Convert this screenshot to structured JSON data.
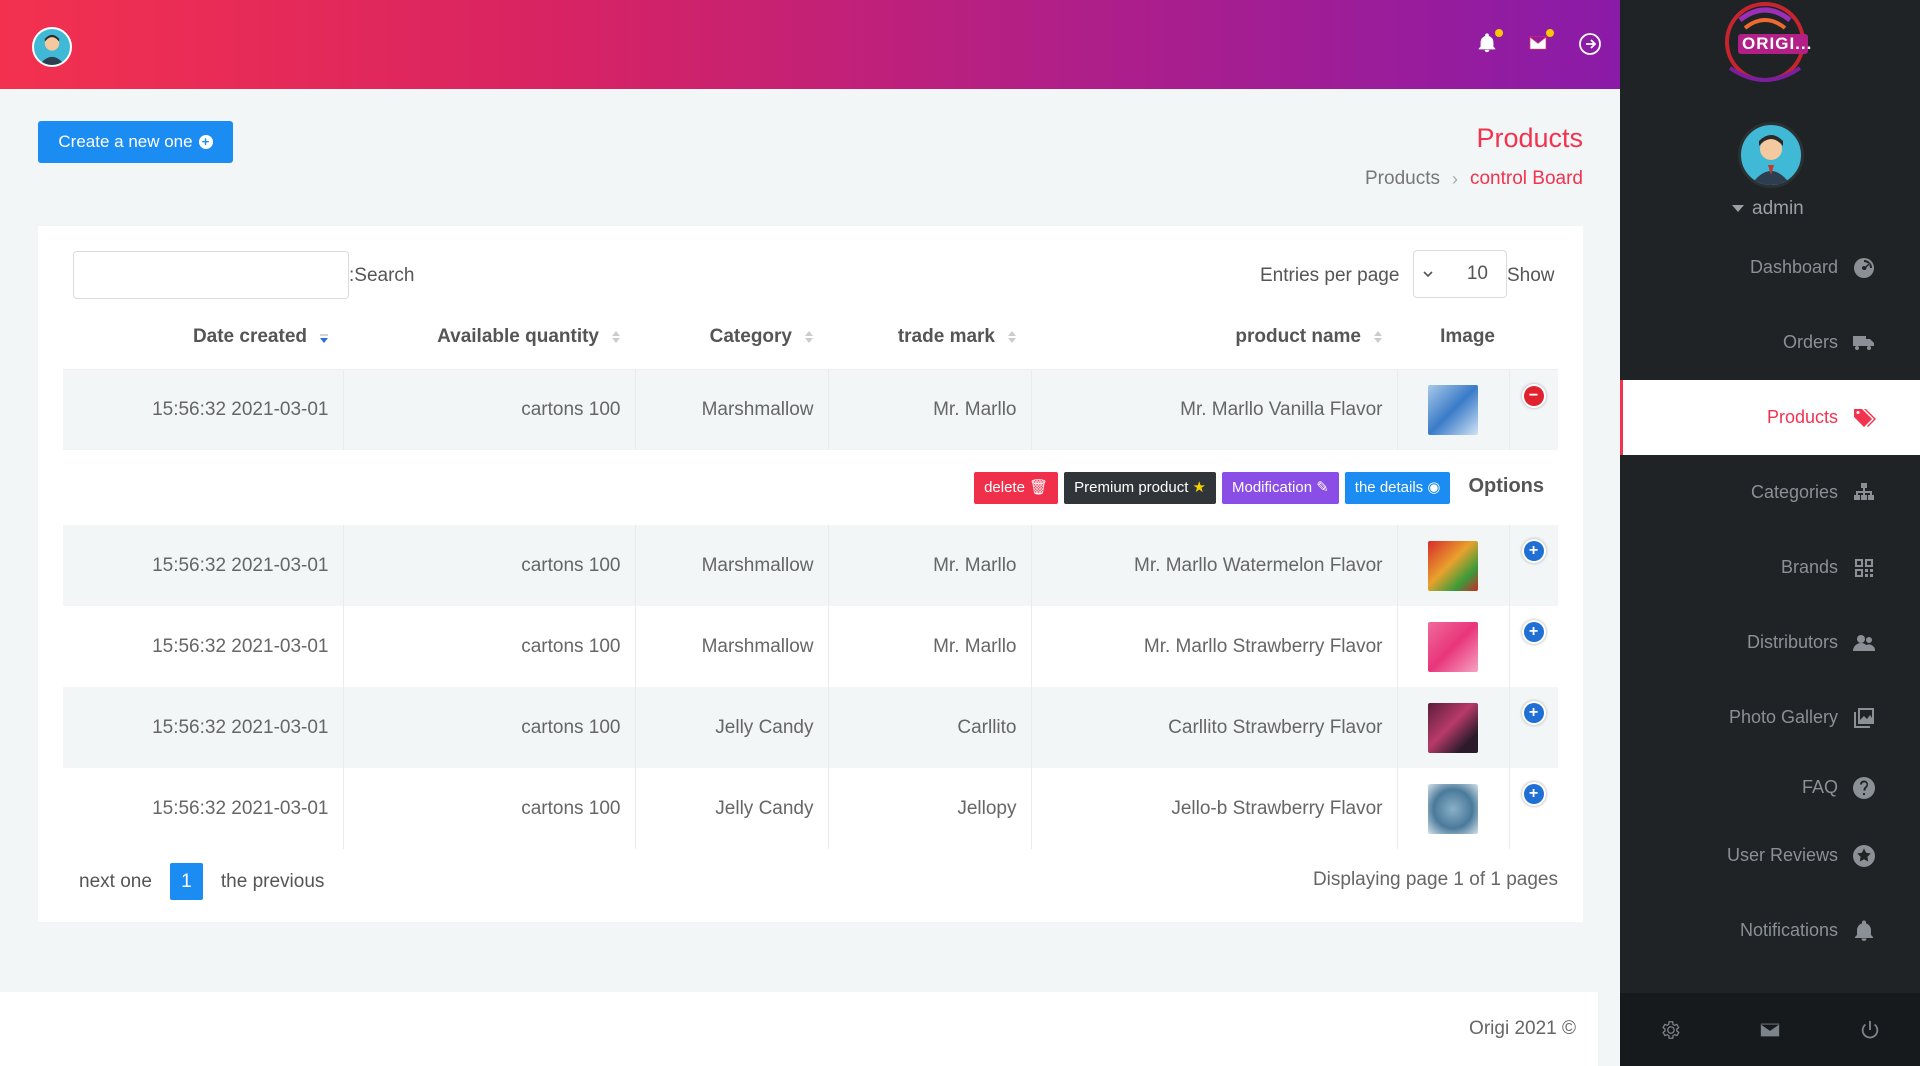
{
  "header": {
    "notification_icon": "bell-icon",
    "mail_icon": "mail-icon",
    "logout_icon": "logout-icon"
  },
  "sidebar": {
    "logo_text": "ORIGI...",
    "user": "admin",
    "items": [
      {
        "label": "Dashboard",
        "icon": "dashboard-icon"
      },
      {
        "label": "Orders",
        "icon": "truck-icon"
      },
      {
        "label": "Products",
        "icon": "tags-icon",
        "active": true
      },
      {
        "label": "Categories",
        "icon": "sitemap-icon"
      },
      {
        "label": "Brands",
        "icon": "qrcode-icon"
      },
      {
        "label": "Distributors",
        "icon": "users-icon"
      },
      {
        "label": "Photo Gallery",
        "icon": "images-icon"
      },
      {
        "label": "FAQ",
        "icon": "question-icon"
      },
      {
        "label": "User Reviews",
        "icon": "star-icon"
      },
      {
        "label": "Notifications",
        "icon": "bell-icon"
      }
    ],
    "bottom_icons": [
      "gear-icon",
      "mail-icon",
      "power-icon"
    ]
  },
  "page": {
    "create_label": "Create a new one",
    "title": "Products",
    "breadcrumb": [
      "Products",
      "control Board"
    ]
  },
  "table_controls": {
    "search_label": ":Search",
    "search_value": "",
    "entries_label": "Entries per page",
    "entries_value": "10",
    "show_label": "Show"
  },
  "table": {
    "columns": [
      "Date created",
      "Available quantity",
      "Category",
      "trade mark",
      "product name",
      "Image"
    ],
    "rows": [
      {
        "date": "15:56:32 2021-03-01",
        "qty": "cartons 100",
        "category": "Marshmallow",
        "brand": "Mr. Marllo",
        "name": "Mr. Marllo Vanilla Flavor",
        "expanded": true
      },
      {
        "date": "15:56:32 2021-03-01",
        "qty": "cartons 100",
        "category": "Marshmallow",
        "brand": "Mr. Marllo",
        "name": "Mr. Marllo Watermelon Flavor"
      },
      {
        "date": "15:56:32 2021-03-01",
        "qty": "cartons 100",
        "category": "Marshmallow",
        "brand": "Mr. Marllo",
        "name": "Mr. Marllo Strawberry Flavor"
      },
      {
        "date": "15:56:32 2021-03-01",
        "qty": "cartons 100",
        "category": "Jelly Candy",
        "brand": "Carllito",
        "name": "Carllito Strawberry Flavor"
      },
      {
        "date": "15:56:32 2021-03-01",
        "qty": "cartons 100",
        "category": "Jelly Candy",
        "brand": "Jellopy",
        "name": "Jello-b Strawberry Flavor"
      }
    ],
    "options": {
      "delete": "delete",
      "premium": "Premium product",
      "modification": "Modification",
      "details": "the details",
      "label": "Options"
    }
  },
  "pagination": {
    "next": "next one",
    "current": "1",
    "previous": "the previous",
    "info": "Displaying page 1 of 1 pages"
  },
  "footer": {
    "text": "Origi 2021 ©"
  },
  "colors": {
    "accent": "#f2334f",
    "primary": "#1a8cf2",
    "sidebar_bg": "#1f2326"
  }
}
